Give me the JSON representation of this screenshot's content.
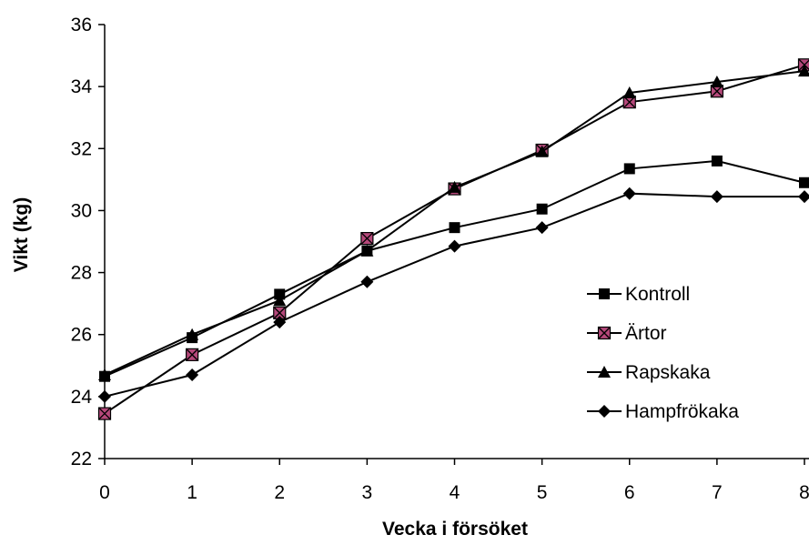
{
  "chart_data": {
    "type": "line",
    "title": "",
    "xlabel": "Vecka i försöket",
    "ylabel": "Vikt (kg)",
    "x": [
      0,
      1,
      2,
      3,
      4,
      5,
      6,
      7,
      8
    ],
    "xlim": [
      0,
      8
    ],
    "ylim": [
      22,
      36
    ],
    "yticks": [
      22,
      24,
      26,
      28,
      30,
      32,
      34,
      36
    ],
    "grid": false,
    "legend_position": "right",
    "series": [
      {
        "name": "Kontroll",
        "marker": "square",
        "color": "#000000",
        "values": [
          24.65,
          25.9,
          27.3,
          28.7,
          29.45,
          30.05,
          31.35,
          31.6,
          30.9
        ]
      },
      {
        "name": "Ärtor",
        "marker": "square-x",
        "color": "#000000",
        "marker_fill": "#b5487a",
        "values": [
          23.45,
          25.35,
          26.7,
          29.1,
          30.7,
          31.95,
          33.5,
          33.85,
          34.7
        ]
      },
      {
        "name": "Rapskaka",
        "marker": "triangle",
        "color": "#000000",
        "values": [
          24.7,
          26.0,
          27.1,
          28.7,
          30.75,
          31.9,
          33.8,
          34.15,
          34.5
        ]
      },
      {
        "name": "Hampfrökaka",
        "marker": "diamond",
        "color": "#000000",
        "values": [
          24.0,
          24.7,
          26.4,
          27.7,
          28.85,
          29.45,
          30.55,
          30.45,
          30.45
        ]
      }
    ]
  }
}
